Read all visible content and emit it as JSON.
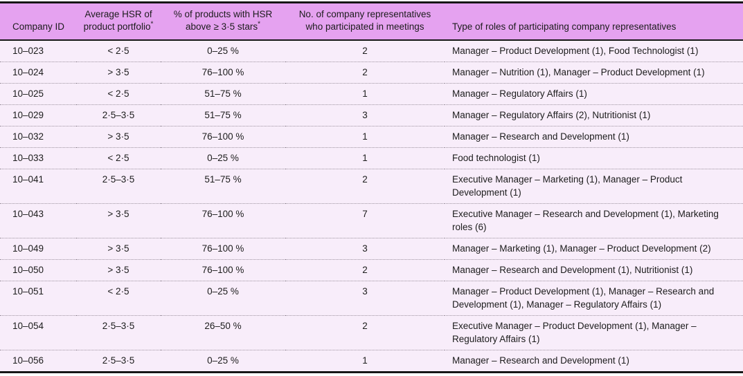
{
  "colors": {
    "header_bg": "#e5a2f0",
    "row_bg": "#f8edfa",
    "border_dark": "#161616",
    "divider": "#9d939f",
    "text": "#1c1c1c"
  },
  "table": {
    "columns": [
      {
        "label": "Company ID",
        "sup": ""
      },
      {
        "label": "Average HSR of product portfolio",
        "sup": "*"
      },
      {
        "label": "% of products with HSR above ≥ 3·5 stars",
        "sup": "*"
      },
      {
        "label": "No. of company representatives who participated in meetings",
        "sup": ""
      },
      {
        "label": "Type of roles of participating company representatives",
        "sup": ""
      }
    ],
    "rows": [
      {
        "company_id": "10–023",
        "avg_hsr": "< 2·5",
        "pct_above": "0–25 %",
        "num_reps": "2",
        "roles": "Manager – Product Development (1), Food Technologist (1)"
      },
      {
        "company_id": "10–024",
        "avg_hsr": "> 3·5",
        "pct_above": "76–100 %",
        "num_reps": "2",
        "roles": "Manager – Nutrition (1), Manager – Product Development (1)"
      },
      {
        "company_id": "10–025",
        "avg_hsr": "< 2·5",
        "pct_above": "51–75 %",
        "num_reps": "1",
        "roles": "Manager – Regulatory Affairs (1)"
      },
      {
        "company_id": "10–029",
        "avg_hsr": "2·5–3·5",
        "pct_above": "51–75 %",
        "num_reps": "3",
        "roles": "Manager – Regulatory Affairs (2), Nutritionist (1)"
      },
      {
        "company_id": "10–032",
        "avg_hsr": "> 3·5",
        "pct_above": "76–100 %",
        "num_reps": "1",
        "roles": "Manager – Research and Development (1)"
      },
      {
        "company_id": "10–033",
        "avg_hsr": "< 2·5",
        "pct_above": "0–25 %",
        "num_reps": "1",
        "roles": "Food technologist (1)"
      },
      {
        "company_id": "10–041",
        "avg_hsr": "2·5–3·5",
        "pct_above": "51–75 %",
        "num_reps": "2",
        "roles": "Executive Manager – Marketing (1), Manager – Product Development (1)"
      },
      {
        "company_id": "10–043",
        "avg_hsr": "> 3·5",
        "pct_above": "76–100 %",
        "num_reps": "7",
        "roles": "Executive Manager – Research and Development (1), Marketing roles (6)"
      },
      {
        "company_id": "10–049",
        "avg_hsr": "> 3·5",
        "pct_above": "76–100 %",
        "num_reps": "3",
        "roles": "Manager – Marketing (1), Manager – Product Development (2)"
      },
      {
        "company_id": "10–050",
        "avg_hsr": "> 3·5",
        "pct_above": "76–100 %",
        "num_reps": "2",
        "roles": "Manager – Research and Development (1), Nutritionist (1)"
      },
      {
        "company_id": "10–051",
        "avg_hsr": "< 2·5",
        "pct_above": "0–25 %",
        "num_reps": "3",
        "roles": "Manager – Product Development (1), Manager – Research and Development (1), Manager – Regulatory Affairs (1)"
      },
      {
        "company_id": "10–054",
        "avg_hsr": "2·5–3·5",
        "pct_above": "26–50 %",
        "num_reps": "2",
        "roles": "Executive Manager – Product Development (1), Manager – Regulatory Affairs (1)"
      },
      {
        "company_id": "10–056",
        "avg_hsr": "2·5–3·5",
        "pct_above": "0–25 %",
        "num_reps": "1",
        "roles": "Manager – Research and Development (1)"
      }
    ]
  }
}
